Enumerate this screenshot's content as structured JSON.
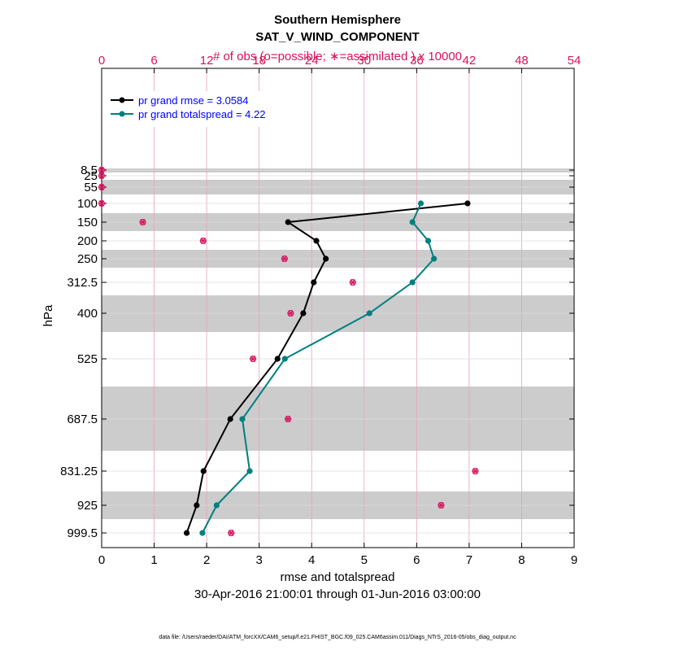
{
  "chart_data": {
    "type": "line",
    "title": "Southern Hemisphere",
    "subtitle": "SAT_V_WIND_COMPONENT",
    "top_axis_label": "# of obs (o=possible; ∗=assimilated ) x 10000",
    "xlabel": "rmse and totalspread",
    "ylabel": "hPa",
    "date_range": "30-Apr-2016 21:00:01 through 01-Jun-2016 03:00:00",
    "footnote": "data file: /Users/raeder/DAI/ATM_forcXX/CAM6_setup/f.e21.FHIST_BGC.f09_025.CAM6assim.011/Diags_NTrS_2016-05/obs_diag_output.nc",
    "xlim": [
      0,
      9
    ],
    "x_ticks": [
      "0",
      "1",
      "2",
      "3",
      "4",
      "5",
      "6",
      "7",
      "8",
      "9"
    ],
    "top_xlim": [
      0,
      54
    ],
    "top_ticks": [
      "0",
      "6",
      "12",
      "18",
      "24",
      "30",
      "36",
      "42",
      "48",
      "54"
    ],
    "y_ticks": [
      "8.5",
      "25",
      "55",
      "100",
      "150",
      "200",
      "250",
      "312.5",
      "400",
      "525",
      "687.5",
      "831.25",
      "925",
      "999.5"
    ],
    "legend": {
      "location": "top-left",
      "entries": [
        "pr grand rmse = 3.0584",
        "pr grand totalspread = 4.22"
      ]
    },
    "colors": {
      "rmse": "#000000",
      "spread": "#007f7f",
      "obs": "#d6125c",
      "band": "#cccccc",
      "legend_text": "#0000ff"
    },
    "series": [
      {
        "name": "rmse",
        "levels": [
          "100",
          "150",
          "200",
          "250",
          "312.5",
          "400",
          "525",
          "687.5",
          "831.25",
          "925",
          "999.5"
        ],
        "values": [
          6.97,
          3.55,
          4.09,
          4.27,
          4.04,
          3.84,
          3.35,
          2.45,
          1.94,
          1.81,
          1.62
        ]
      },
      {
        "name": "totalspread",
        "levels": [
          "100",
          "150",
          "200",
          "250",
          "312.5",
          "400",
          "525",
          "687.5",
          "831.25",
          "925",
          "999.5"
        ],
        "values": [
          6.08,
          5.92,
          6.22,
          6.33,
          5.92,
          5.1,
          3.49,
          2.68,
          2.82,
          2.19,
          1.92
        ]
      },
      {
        "name": "obs_count_x10000",
        "levels": [
          "8.5",
          "25",
          "55",
          "100",
          "150",
          "200",
          "250",
          "312.5",
          "400",
          "525",
          "687.5",
          "831.25",
          "925",
          "999.5"
        ],
        "values": [
          0,
          0,
          0,
          0,
          4.7,
          11.6,
          20.9,
          28.7,
          21.6,
          17.3,
          21.3,
          42.7,
          38.8,
          14.8
        ]
      }
    ]
  }
}
